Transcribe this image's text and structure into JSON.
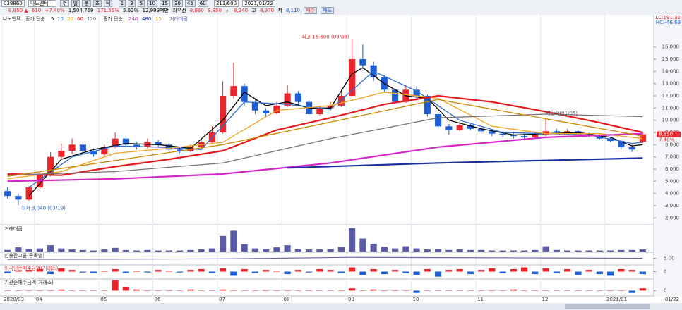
{
  "toolbar": {
    "code": "039860",
    "name": "나노엔텍",
    "periods": [
      "주",
      "일",
      "분",
      "초",
      "틱"
    ],
    "intervals": [
      "1",
      "3",
      "5",
      "10",
      "15",
      "30",
      "45",
      "60"
    ],
    "count": "211/600",
    "date": "2021/01/22"
  },
  "quote": {
    "price": "8,850 ▲",
    "change": "610",
    "rate": "+7.40%",
    "volume": "1,504,769",
    "vol_ratio": "171.55%",
    "turnover": "5.62%",
    "amount": "12,999백만",
    "best": "최우선",
    "ask": "8,860",
    "bid": "8,850",
    "open_label": "시",
    "open": "8,240",
    "high_label": "고",
    "high": "8,970",
    "low_label": "저",
    "low": "8,110",
    "buy": "매수",
    "sell": "매도"
  },
  "chart_data": [
    {
      "type": "candlestick",
      "legend_prefix": "종가 단순",
      "legend_prefix2": "종가 단순",
      "up_color": "#e8262b",
      "down_color": "#1f5fd6",
      "categories": [
        "2020/03",
        null,
        null,
        "04",
        null,
        null,
        null,
        null,
        null,
        "05",
        null,
        null,
        null,
        null,
        "06",
        null,
        null,
        null,
        null,
        null,
        "07",
        null,
        null,
        null,
        null,
        null,
        "08",
        null,
        null,
        null,
        null,
        null,
        "09",
        null,
        null,
        null,
        null,
        null,
        "10",
        null,
        null,
        null,
        null,
        null,
        "11",
        null,
        null,
        null,
        null,
        null,
        "12",
        null,
        null,
        null,
        null,
        null,
        "2021/01",
        null,
        null,
        null
      ],
      "end_label": "01/22",
      "candles": [
        [
          4200,
          4500,
          3600,
          3800
        ],
        [
          3800,
          4000,
          3040,
          3500
        ],
        [
          3500,
          4600,
          3400,
          4500
        ],
        [
          4500,
          5800,
          4400,
          5500
        ],
        [
          5500,
          7400,
          5400,
          7000
        ],
        [
          7000,
          8100,
          6800,
          7500
        ],
        [
          7500,
          8500,
          7200,
          8000
        ],
        [
          8000,
          8200,
          7300,
          7500
        ],
        [
          7500,
          7700,
          7000,
          7200
        ],
        [
          7200,
          8000,
          7100,
          7800
        ],
        [
          7800,
          9000,
          7700,
          8500
        ],
        [
          8500,
          8700,
          7800,
          8000
        ],
        [
          8000,
          8200,
          7600,
          7800
        ],
        [
          7800,
          8500,
          7700,
          8200
        ],
        [
          8200,
          8400,
          7800,
          8000
        ],
        [
          8000,
          8100,
          7400,
          7600
        ],
        [
          7600,
          7800,
          7300,
          7500
        ],
        [
          7500,
          8000,
          7400,
          7800
        ],
        [
          7800,
          8500,
          7700,
          8200
        ],
        [
          8200,
          9500,
          8100,
          9000
        ],
        [
          9000,
          13200,
          8900,
          12000
        ],
        [
          12000,
          14700,
          11800,
          12800
        ],
        [
          12800,
          13000,
          11200,
          11500
        ],
        [
          11500,
          11800,
          10500,
          10800
        ],
        [
          10800,
          11000,
          10300,
          10600
        ],
        [
          10600,
          11500,
          10500,
          11200
        ],
        [
          11200,
          12900,
          11100,
          12200
        ],
        [
          12200,
          12400,
          11300,
          11500
        ],
        [
          11500,
          11600,
          10300,
          10500
        ],
        [
          10500,
          11200,
          10400,
          11000
        ],
        [
          11000,
          11500,
          10800,
          11200
        ],
        [
          11200,
          12500,
          11100,
          12000
        ],
        [
          12000,
          16600,
          11900,
          15000
        ],
        [
          15000,
          16200,
          14200,
          14500
        ],
        [
          14500,
          14800,
          13200,
          13500
        ],
        [
          13500,
          13700,
          12300,
          12500
        ],
        [
          12500,
          12600,
          11300,
          11500
        ],
        [
          11500,
          12900,
          11400,
          12500
        ],
        [
          12500,
          12800,
          11800,
          12000
        ],
        [
          12000,
          12100,
          10300,
          10500
        ],
        [
          10500,
          10600,
          9300,
          9500
        ],
        [
          9500,
          9700,
          8800,
          9200
        ],
        [
          9200,
          9900,
          9100,
          9600
        ],
        [
          9600,
          9700,
          9200,
          9300
        ],
        [
          9300,
          9400,
          8900,
          9100
        ],
        [
          9100,
          9200,
          8700,
          8900
        ],
        [
          8900,
          9100,
          8600,
          8800
        ],
        [
          8800,
          9000,
          8500,
          8700
        ],
        [
          8700,
          8900,
          8400,
          8600
        ],
        [
          8600,
          9000,
          8500,
          8800
        ],
        [
          8800,
          10200,
          8700,
          9100
        ],
        [
          9100,
          9300,
          8900,
          9000
        ],
        [
          9000,
          9300,
          8900,
          9100
        ],
        [
          9100,
          9200,
          8800,
          8900
        ],
        [
          8900,
          9000,
          8600,
          8700
        ],
        [
          8700,
          8800,
          8400,
          8500
        ],
        [
          8500,
          8600,
          8200,
          8300
        ],
        [
          8300,
          8400,
          7600,
          7800
        ],
        [
          7800,
          8000,
          7400,
          7600
        ],
        [
          8240,
          8970,
          8110,
          8850
        ]
      ],
      "series": [
        {
          "name": "5",
          "color": "#000000",
          "x": [
            2,
            5,
            8,
            11,
            14,
            17,
            20,
            22,
            24,
            26,
            28,
            30,
            32,
            33,
            35,
            37,
            39,
            41,
            44,
            47,
            50,
            53,
            56,
            58,
            59
          ],
          "values": [
            3800,
            6800,
            7600,
            8100,
            8000,
            7700,
            10000,
            12300,
            11200,
            11500,
            11000,
            11000,
            13800,
            14300,
            13000,
            12000,
            11800,
            10000,
            9300,
            8800,
            8900,
            9000,
            8600,
            7900,
            8000
          ]
        },
        {
          "name": "10",
          "color": "#2f6fd0",
          "x": [
            2,
            6,
            10,
            14,
            18,
            22,
            26,
            30,
            34,
            38,
            42,
            46,
            50,
            54,
            58,
            59
          ],
          "values": [
            4500,
            7000,
            7900,
            7800,
            7600,
            11500,
            11300,
            10900,
            14000,
            12400,
            10000,
            9000,
            8900,
            8800,
            8100,
            8200
          ]
        },
        {
          "name": "20",
          "color": "#f4a020",
          "x": [
            0,
            5,
            10,
            15,
            20,
            25,
            30,
            35,
            40,
            45,
            50,
            55,
            59
          ],
          "values": [
            5200,
            5800,
            7300,
            7700,
            8200,
            10800,
            11200,
            12300,
            11800,
            9500,
            8900,
            8900,
            8500
          ]
        },
        {
          "name": "60",
          "color": "#e41a1c",
          "x": [
            0,
            5,
            10,
            15,
            20,
            25,
            30,
            35,
            40,
            45,
            50,
            55,
            59
          ],
          "values": [
            5600,
            5500,
            6200,
            6800,
            7500,
            9200,
            10200,
            11300,
            12000,
            11500,
            10700,
            9800,
            9000
          ]
        },
        {
          "name": "120",
          "color": "#777777",
          "x": [
            0,
            10,
            20,
            30,
            40,
            50,
            59
          ],
          "values": [
            5500,
            5800,
            6500,
            8500,
            10200,
            10500,
            10300
          ]
        },
        {
          "name": "240",
          "color": "#d726c8",
          "x": [
            0,
            10,
            20,
            30,
            40,
            50,
            59
          ],
          "values": [
            5000,
            5200,
            5600,
            6500,
            7800,
            8600,
            8900
          ]
        },
        {
          "name": "480",
          "color": "#1a2fa0",
          "x": [
            26,
            40,
            59
          ],
          "values": [
            6100,
            6500,
            6900
          ]
        },
        {
          "name": "15",
          "color": "#c98a00",
          "x": [
            0,
            20,
            40,
            59
          ],
          "values": [
            5400,
            8000,
            11700,
            8700
          ]
        }
      ],
      "max_label": "최고 16,600 (09/08)",
      "min_label": "최저 3,040 (03/19)",
      "event_label": "배당락(01/05)",
      "last_label": "8,850",
      "last_rate": "7.40%",
      "lc": "LC:191.32",
      "hc": "HC:-46.69",
      "ylim": [
        1500,
        18000
      ],
      "yticks": [
        {
          "value": 2000,
          "label": "2,000"
        },
        {
          "value": 3000,
          "label": "3,000"
        },
        {
          "value": 4000,
          "label": "4,000"
        },
        {
          "value": 5000,
          "label": "5,000"
        },
        {
          "value": 6000,
          "label": "6,000"
        },
        {
          "value": 7000,
          "label": "7,000"
        },
        {
          "value": 8000,
          "label": "8,000"
        },
        {
          "value": 9000,
          "label": "9,000"
        },
        {
          "value": 10000,
          "label": "10,000"
        },
        {
          "value": 11000,
          "label": "11,000"
        },
        {
          "value": 12000,
          "label": "12,000"
        },
        {
          "value": 13000,
          "label": "13,000"
        },
        {
          "value": 14000,
          "label": "14,000"
        },
        {
          "value": 15000,
          "label": "15,000"
        },
        {
          "value": 16000,
          "label": "16,000"
        }
      ]
    },
    {
      "type": "bar",
      "title": "거래대금",
      "color": "#5b5ea6",
      "values": [
        3,
        8,
        5,
        6,
        12,
        6,
        4,
        3,
        2,
        4,
        7,
        3,
        2,
        3,
        2,
        2,
        2,
        3,
        4,
        6,
        30,
        40,
        14,
        6,
        5,
        8,
        12,
        5,
        4,
        4,
        5,
        9,
        45,
        25,
        15,
        9,
        6,
        10,
        6,
        4,
        5,
        3,
        4,
        3,
        3,
        2,
        2,
        2,
        2,
        3,
        10,
        3,
        2,
        2,
        2,
        2,
        2,
        3,
        3,
        4
      ],
      "ylim": [
        0,
        50
      ]
    },
    {
      "type": "line",
      "title": "신용잔고율(종목별)",
      "color": "#6a6ab0",
      "x": [
        0,
        20,
        32,
        40,
        50,
        59
      ],
      "values": [
        4.6,
        4.8,
        5.3,
        5.2,
        5.1,
        5.0
      ],
      "ylim": [
        3,
        7
      ],
      "yticks": [
        {
          "value": 5,
          "label": "5.00"
        }
      ]
    },
    {
      "type": "bar",
      "title": "외국인순매수금액(거래소)",
      "up_color": "#e8262b",
      "down_color": "#1f5fd6",
      "values": [
        -2,
        1,
        2,
        3,
        -3,
        4,
        2,
        -1,
        -2,
        1,
        3,
        -2,
        1,
        -1,
        2,
        1,
        -1,
        2,
        3,
        -2,
        4,
        -5,
        3,
        -2,
        2,
        1,
        -3,
        2,
        -1,
        3,
        2,
        -2,
        5,
        -4,
        3,
        -3,
        2,
        -2,
        -4,
        3,
        -6,
        2,
        3,
        -3,
        2,
        4,
        -2,
        3,
        5,
        -3,
        4,
        -2,
        3,
        -4,
        2,
        -3,
        -5,
        3,
        2,
        -3
      ],
      "ylim": [
        -8,
        8
      ],
      "yticks": [
        0
      ]
    },
    {
      "type": "bar",
      "title": "기관순매수금액(거래소)",
      "up_color": "#e8262b",
      "down_color": "#1f5fd6",
      "values": [
        0,
        0,
        0,
        0,
        0,
        1,
        0,
        0,
        0,
        0,
        9,
        3,
        1,
        0,
        0,
        0,
        0,
        1,
        0,
        0,
        1,
        0,
        0,
        0,
        0,
        0,
        0,
        0,
        0,
        0,
        0,
        0,
        2,
        0,
        1,
        0,
        0,
        0,
        -2,
        0,
        0,
        0,
        0,
        0,
        0,
        0,
        0,
        1,
        0,
        0,
        0,
        0,
        0,
        0,
        0,
        0,
        0,
        0,
        -2,
        2
      ],
      "ylim": [
        -4,
        10
      ],
      "yticks": [
        0
      ]
    }
  ]
}
